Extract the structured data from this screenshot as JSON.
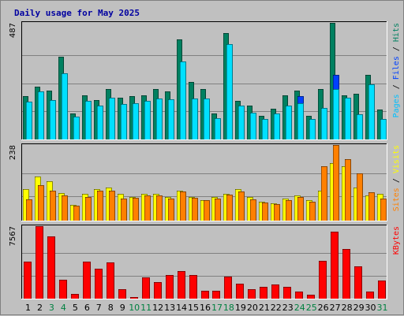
{
  "chart_data": {
    "type": "bar",
    "title": "Daily usage for May 2025",
    "x": [
      "1",
      "2",
      "3",
      "4",
      "5",
      "6",
      "7",
      "8",
      "9",
      "10",
      "11",
      "12",
      "13",
      "14",
      "15",
      "16",
      "17",
      "18",
      "19",
      "20",
      "21",
      "22",
      "23",
      "24",
      "25",
      "26",
      "27",
      "28",
      "29",
      "30",
      "31"
    ],
    "weekend_days": [
      3,
      4,
      10,
      11,
      17,
      18,
      24,
      25,
      31
    ],
    "weekday_color": "#000000",
    "weekend_color": "#008040",
    "panels": [
      {
        "id": "hits-files-pages",
        "ymax_label": "487",
        "ymax": 487,
        "side_labels": [
          {
            "text": "Pages",
            "color": "#00c0ff"
          },
          {
            "text": " / ",
            "color": "#000000"
          },
          {
            "text": "Files",
            "color": "#0040ff"
          },
          {
            "text": " / ",
            "color": "#000000"
          },
          {
            "text": "Hits",
            "color": "#008060"
          }
        ],
        "series": [
          {
            "name": "Hits",
            "color": "#008060",
            "values": [
              180,
              220,
              205,
              345,
              110,
              185,
              165,
              210,
              175,
              180,
              185,
              210,
              200,
              417,
              240,
              210,
              110,
              445,
              160,
              140,
              98,
              127,
              185,
              205,
              100,
              210,
              487,
              185,
              190,
              270,
              125
            ]
          },
          {
            "name": "Files",
            "color": "#0040ff",
            "values": [
              158,
              200,
              165,
              275,
              95,
              160,
              143,
              175,
              148,
              150,
              160,
              170,
              167,
              325,
              172,
              170,
              90,
              399,
              143,
              113,
              87,
              110,
              140,
              180,
              87,
              132,
              270,
              175,
              105,
              230,
              85
            ]
          },
          {
            "name": "Pages",
            "color": "#00e0ff",
            "values": [
              158,
              200,
              165,
              275,
              95,
              160,
              143,
              175,
              148,
              150,
              160,
              170,
              167,
              325,
              172,
              170,
              90,
              399,
              143,
              113,
              87,
              110,
              140,
              150,
              87,
              132,
              210,
              175,
              105,
              230,
              85
            ]
          }
        ]
      },
      {
        "id": "visits-sites",
        "ymax_label": "238",
        "ymax": 238,
        "side_labels": [
          {
            "text": "Sites",
            "color": "#ff8000"
          },
          {
            "text": " / ",
            "color": "#000000"
          },
          {
            "text": "Visits",
            "color": "#ffff00"
          }
        ],
        "series": [
          {
            "name": "Visits",
            "color": "#ffff00",
            "values": [
              100,
              140,
              125,
              88,
              50,
              85,
              100,
              105,
              85,
              75,
              85,
              85,
              75,
              95,
              75,
              65,
              75,
              85,
              100,
              75,
              60,
              55,
              70,
              80,
              65,
              95,
              180,
              170,
              105,
              80,
              85
            ]
          },
          {
            "name": "Sites",
            "color": "#ff8000",
            "values": [
              68,
              112,
              95,
              80,
              47,
              75,
              95,
              95,
              70,
              72,
              80,
              80,
              70,
              92,
              72,
              65,
              70,
              82,
              92,
              68,
              58,
              52,
              65,
              75,
              60,
              170,
              238,
              193,
              148,
              90,
              70
            ]
          }
        ]
      },
      {
        "id": "kbytes",
        "ymax_label": "7567",
        "ymax": 7567,
        "side_labels": [
          {
            "text": "KBytes",
            "color": "#ff0000"
          }
        ],
        "series": [
          {
            "name": "KBytes",
            "color": "#ff0000",
            "values": [
              3900,
              7567,
              6500,
              1950,
              500,
              3900,
              3100,
              3800,
              1000,
              200,
              2200,
              1700,
              2500,
              2900,
              2500,
              800,
              800,
              2300,
              1600,
              950,
              1200,
              1450,
              1200,
              750,
              420,
              3950,
              7000,
              5200,
              3400,
              750,
              1900
            ]
          }
        ]
      }
    ]
  }
}
